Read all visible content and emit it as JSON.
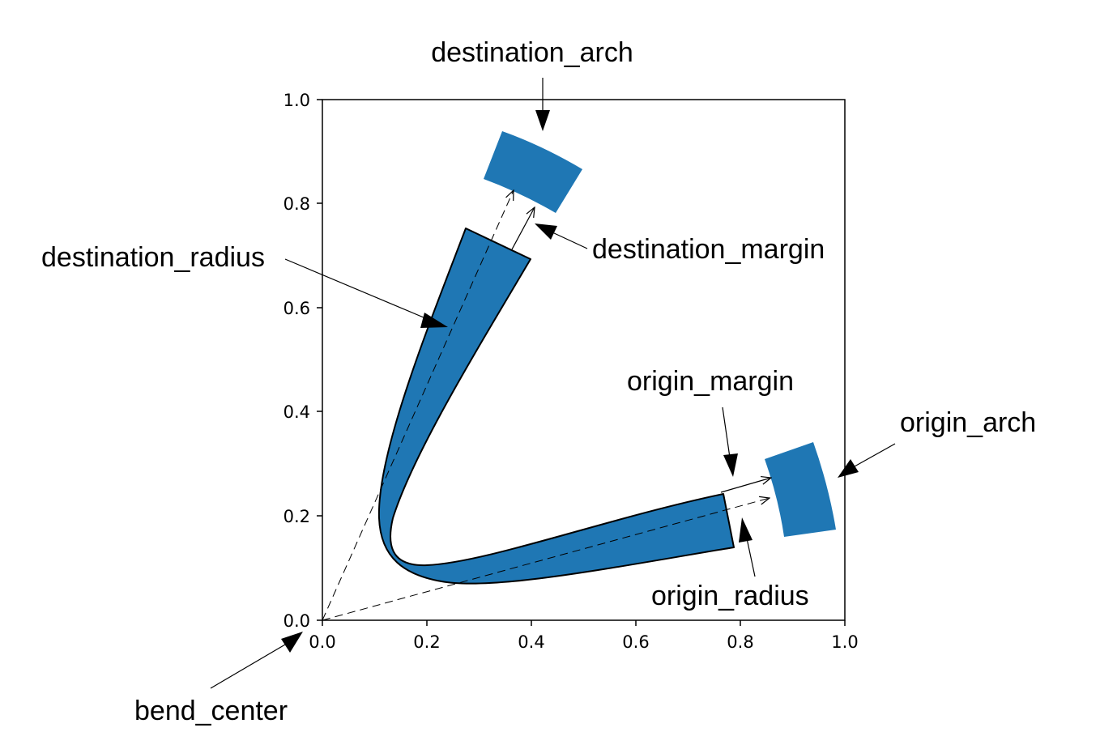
{
  "colors": {
    "shape_fill": "#1f77b4",
    "stroke": "#000000",
    "background": "#ffffff"
  },
  "axes": {
    "xlim": [
      0.0,
      1.0
    ],
    "ylim": [
      0.0,
      1.0
    ],
    "xticks": [
      "0.0",
      "0.2",
      "0.4",
      "0.6",
      "0.8",
      "1.0"
    ],
    "yticks": [
      "0.0",
      "0.2",
      "0.4",
      "0.6",
      "0.8",
      "1.0"
    ]
  },
  "annotations": {
    "destination_arch": "destination_arch",
    "destination_margin": "destination_margin",
    "destination_radius": "destination_radius",
    "origin_margin": "origin_margin",
    "origin_arch": "origin_arch",
    "origin_radius": "origin_radius",
    "bend_center": "bend_center"
  }
}
